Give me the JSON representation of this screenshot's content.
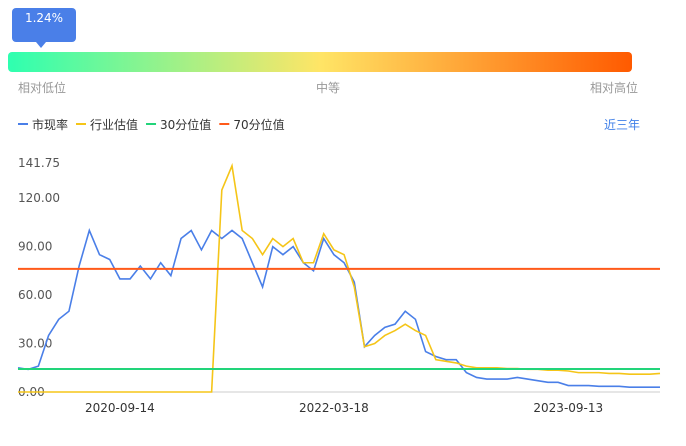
{
  "gauge": {
    "value": 1.24,
    "value_label": "1.24%",
    "labels": [
      "相对低位",
      "中等",
      "相对高位"
    ],
    "colors": [
      "#2effb0",
      "#ffe566",
      "#ff5a00"
    ]
  },
  "range_selector": "近三年",
  "chart_data": {
    "type": "line",
    "categories": [
      null,
      null,
      null,
      null,
      null,
      null,
      null,
      null,
      null,
      null,
      "2020-09-14",
      null,
      null,
      null,
      null,
      null,
      null,
      null,
      null,
      null,
      null,
      null,
      null,
      null,
      null,
      null,
      null,
      null,
      null,
      null,
      null,
      "2022-03-18",
      null,
      null,
      null,
      null,
      null,
      null,
      null,
      null,
      null,
      null,
      null,
      null,
      null,
      null,
      null,
      null,
      null,
      null,
      null,
      null,
      null,
      null,
      "2023-09-13",
      null,
      null,
      null,
      null,
      null,
      null,
      null,
      null,
      null
    ],
    "series": [
      {
        "name": "市现率",
        "color": "#4a7fe8",
        "values": [
          15,
          14,
          16,
          35,
          45,
          50,
          78,
          100,
          85,
          82,
          70,
          70,
          78,
          70,
          80,
          72,
          95,
          100,
          88,
          100,
          95,
          100,
          95,
          80,
          65,
          90,
          85,
          90,
          80,
          75,
          95,
          85,
          80,
          68,
          28,
          35,
          40,
          42,
          50,
          45,
          25,
          22,
          20,
          20,
          12,
          9,
          8,
          8,
          8,
          9,
          8,
          7,
          6,
          6,
          4,
          4,
          4,
          3.5,
          3.5,
          3.5,
          3,
          3,
          3,
          3
        ]
      },
      {
        "name": "行业估值",
        "color": "#f5c518",
        "values": [
          0,
          0,
          0,
          0,
          0,
          0,
          0,
          0,
          0,
          0,
          0,
          0,
          0,
          0,
          0,
          0,
          0,
          0,
          0,
          0,
          125,
          140,
          100,
          95,
          85,
          95,
          90,
          95,
          80,
          80,
          98,
          88,
          85,
          65,
          28,
          30,
          35,
          38,
          42,
          38,
          35,
          20,
          19,
          18,
          16,
          15,
          15,
          15,
          14.5,
          14.5,
          14,
          14,
          13.5,
          13.5,
          13,
          12,
          12,
          12,
          11.5,
          11.5,
          11,
          11,
          11,
          11.5
        ]
      },
      {
        "name": "30分位值",
        "color": "#22d47a",
        "value": 14.2
      },
      {
        "name": "70分位值",
        "color": "#ff5a1a",
        "value": 76.2
      }
    ],
    "ylim": [
      0,
      141.75
    ],
    "yticks": [
      {
        "value": 0,
        "label": "0.00"
      },
      {
        "value": 30,
        "label": "30.00"
      },
      {
        "value": 60,
        "label": "60.00"
      },
      {
        "value": 90,
        "label": "90.00"
      },
      {
        "value": 120,
        "label": "120.00"
      },
      141.75
    ]
  }
}
